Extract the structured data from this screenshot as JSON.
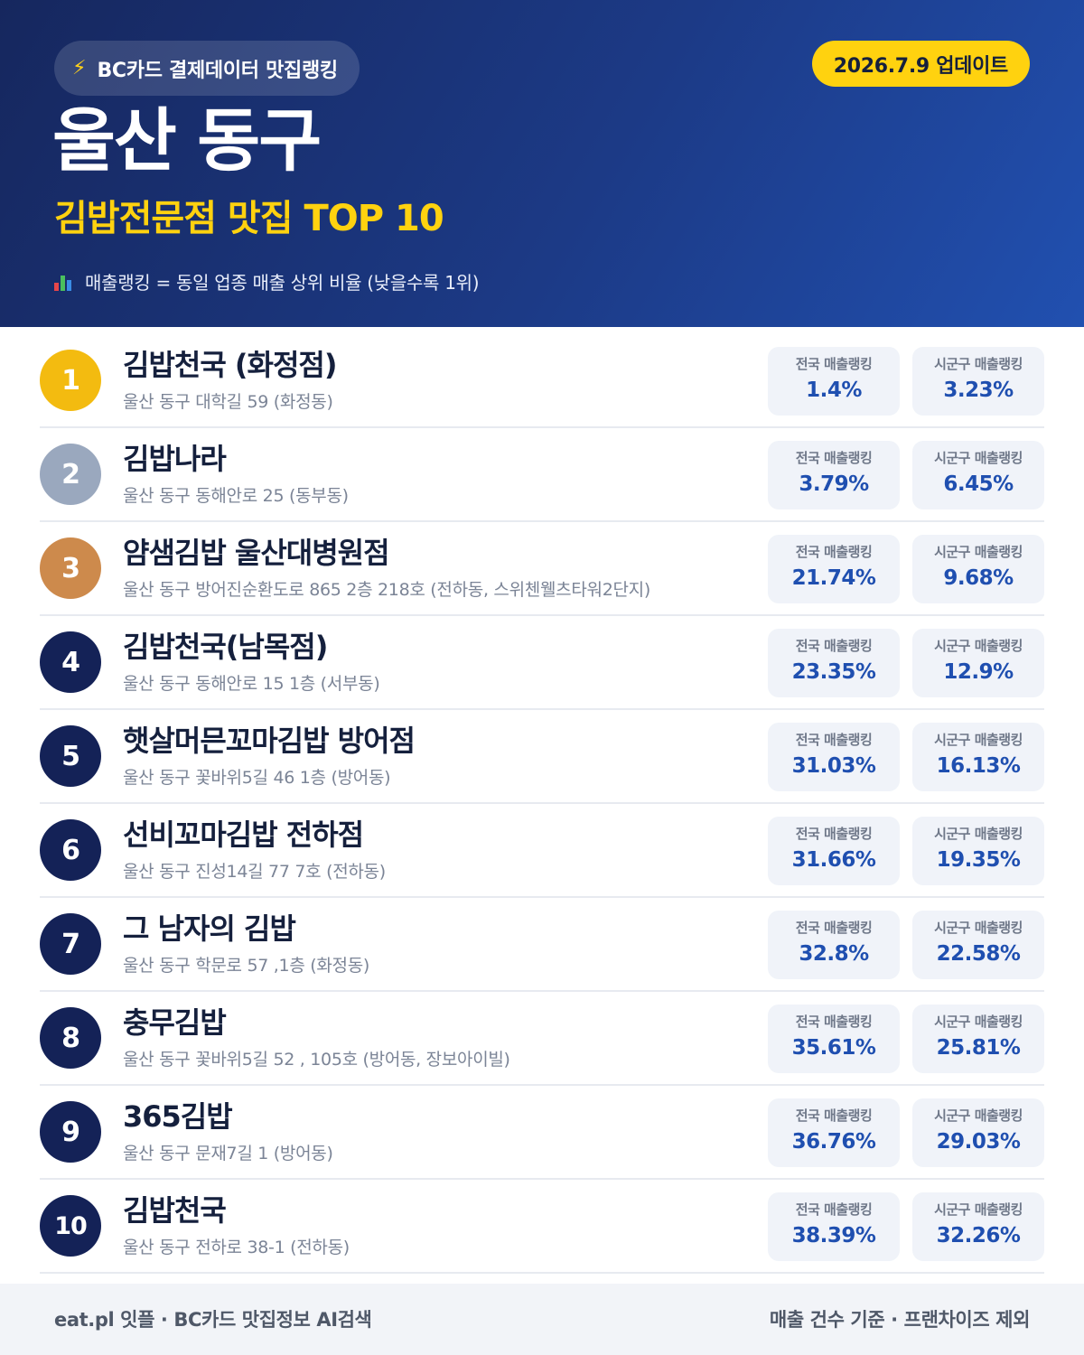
{
  "header": {
    "source_label": "BC카드 결제데이터 맛집랭킹",
    "source_icon": "lightning-bolt-icon",
    "update_date": "2026.7.9 업데이트",
    "title": "울산 동구",
    "subtitle": "김밥전문점 맛집 TOP 10",
    "note_icon": "bar-chart-icon",
    "note": "매출랭킹 = 동일 업종 매출 상위 비율 (낮을수록 1위)"
  },
  "stat_labels": {
    "national": "전국 매출랭킹",
    "district": "시군구 매출랭킹"
  },
  "colors": {
    "header_bg": "#1c3a86",
    "accent_yellow": "#ffd20f",
    "gold": "#f3bb10",
    "silver": "#9aa8be",
    "bronze": "#cd8a4c",
    "rank_navy": "#142257",
    "value_blue": "#1f4fb0"
  },
  "restaurants": [
    {
      "rank": "1",
      "name": "김밥천국 (화정점)",
      "address": "울산 동구 대학길 59 (화정동)",
      "national": "1.4%",
      "district": "3.23%"
    },
    {
      "rank": "2",
      "name": "김밥나라",
      "address": "울산 동구 동해안로 25 (동부동)",
      "national": "3.79%",
      "district": "6.45%"
    },
    {
      "rank": "3",
      "name": "얌샘김밥 울산대병원점",
      "address": "울산 동구 방어진순환도로 865 2층 218호 (전하동, 스위첸웰츠타워2단지)",
      "national": "21.74%",
      "district": "9.68%"
    },
    {
      "rank": "4",
      "name": "김밥천국(남목점)",
      "address": "울산 동구 동해안로 15 1층 (서부동)",
      "national": "23.35%",
      "district": "12.9%"
    },
    {
      "rank": "5",
      "name": "햇살머믄꼬마김밥 방어점",
      "address": "울산 동구 꽃바위5길 46 1층 (방어동)",
      "national": "31.03%",
      "district": "16.13%"
    },
    {
      "rank": "6",
      "name": "선비꼬마김밥 전하점",
      "address": "울산 동구 진성14길 77 7호 (전하동)",
      "national": "31.66%",
      "district": "19.35%"
    },
    {
      "rank": "7",
      "name": "그 남자의 김밥",
      "address": "울산 동구 학문로 57 ,1층 (화정동)",
      "national": "32.8%",
      "district": "22.58%"
    },
    {
      "rank": "8",
      "name": "충무김밥",
      "address": "울산 동구 꽃바위5길 52 , 105호 (방어동, 장보아이빌)",
      "national": "35.61%",
      "district": "25.81%"
    },
    {
      "rank": "9",
      "name": "365김밥",
      "address": "울산 동구 문재7길 1 (방어동)",
      "national": "36.76%",
      "district": "29.03%"
    },
    {
      "rank": "10",
      "name": "김밥천국",
      "address": "울산 동구 전하로 38-1 (전하동)",
      "national": "38.39%",
      "district": "32.26%"
    }
  ],
  "footer": {
    "left": "eat.pl 잇플 · BC카드 맛집정보 AI검색",
    "right": "매출 건수 기준 · 프랜차이즈 제외"
  }
}
